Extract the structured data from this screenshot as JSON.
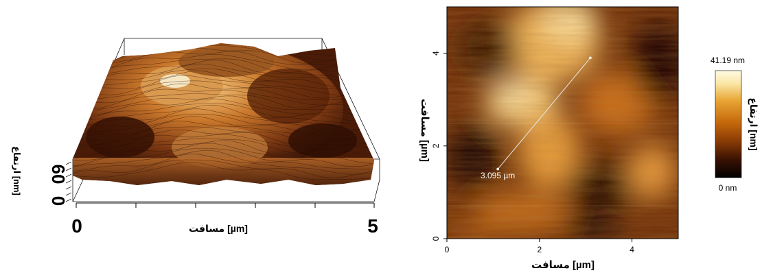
{
  "left_panel": {
    "x_axis": {
      "label": "مسافت [µm]",
      "min_label": "0",
      "max_label": "5"
    },
    "z_axis": {
      "label": "ارتفاع [nm]",
      "min_label": "0",
      "max_label": "60"
    }
  },
  "right_panel": {
    "x_axis": {
      "label": "مسافت [µm]",
      "ticks": [
        "0",
        "2",
        "4"
      ]
    },
    "y_axis": {
      "label": "مسافت [µm]",
      "ticks": [
        "0",
        "2",
        "4"
      ]
    },
    "measurement": {
      "label": "3.095 µm",
      "start": [
        1.1,
        1.5
      ],
      "end": [
        3.1,
        3.9
      ]
    },
    "extent_um": 5
  },
  "colorbar": {
    "max_label": "41.19 nm",
    "min_label": "0 nm",
    "label": "ارتفاع [nm]",
    "colors": [
      "#000000",
      "#3a1203",
      "#8a3b05",
      "#c56a0c",
      "#e9a535",
      "#fbe6a6",
      "#fffbe3"
    ]
  }
}
